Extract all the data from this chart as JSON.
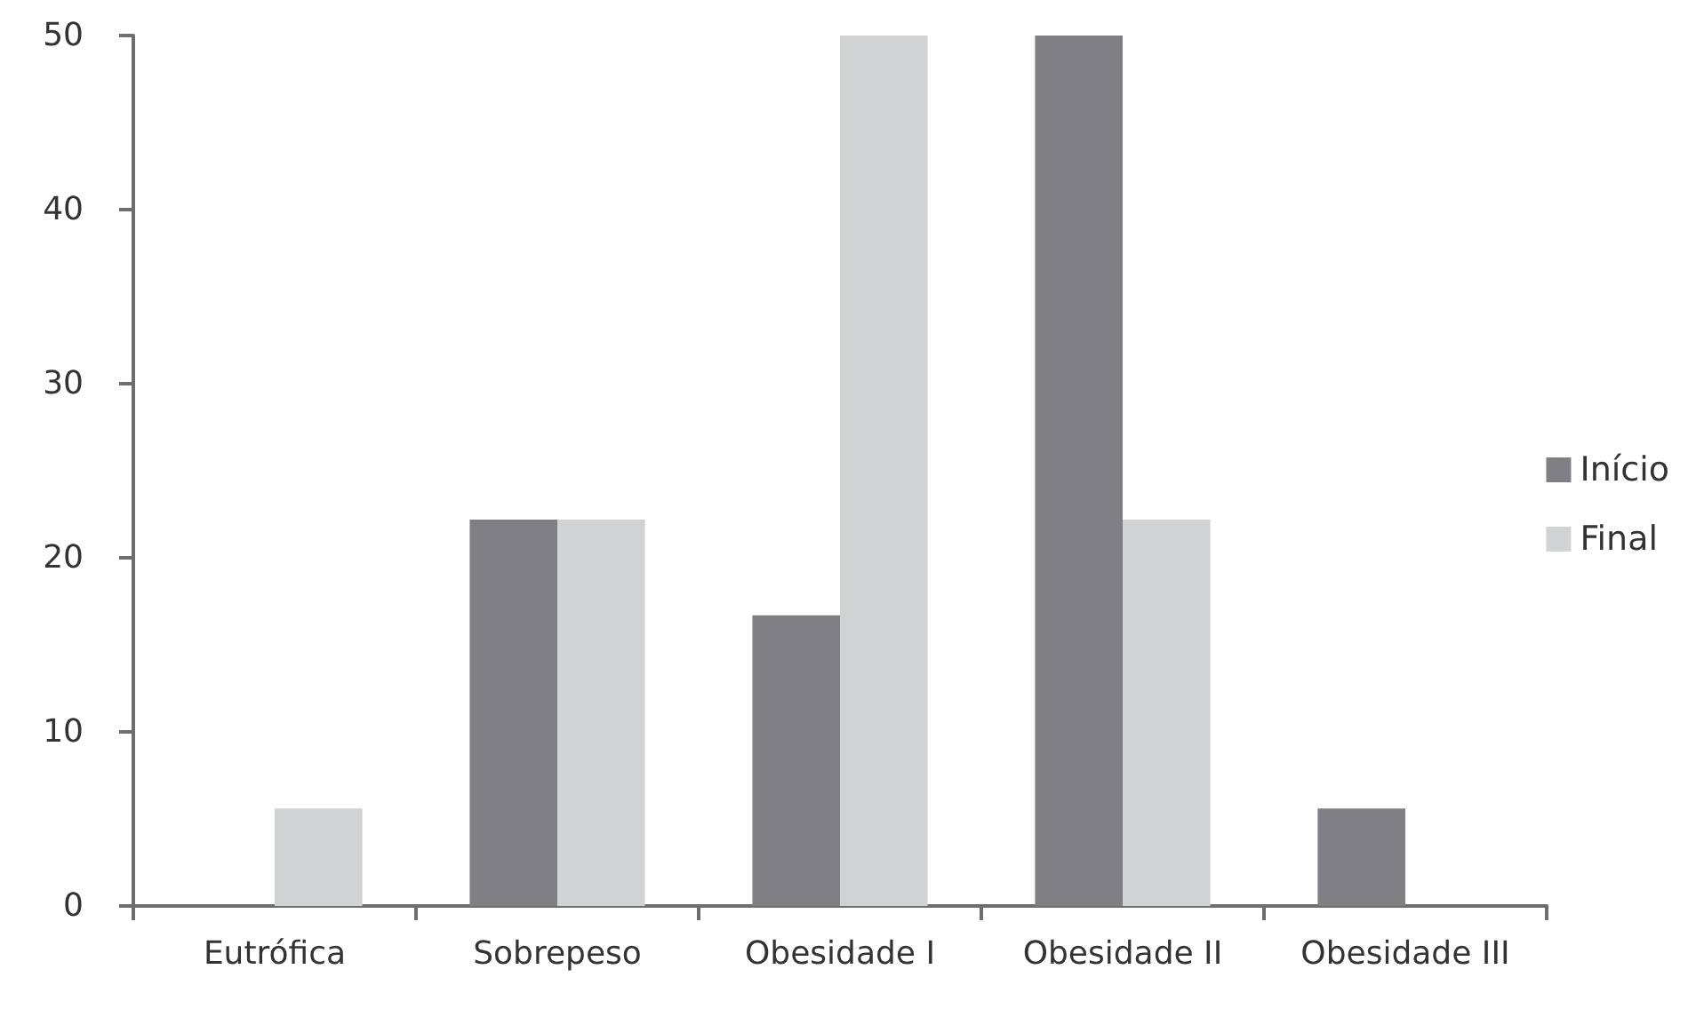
{
  "chart_data": {
    "type": "bar",
    "categories": [
      "Eutrófica",
      "Sobrepeso",
      "Obesidade I",
      "Obesidade II",
      "Obesidade III"
    ],
    "series": [
      {
        "name": "Início",
        "color": "#808084",
        "values": [
          0,
          22.2,
          16.7,
          50,
          5.6
        ]
      },
      {
        "name": "Final",
        "color": "#d1d2d4",
        "values": [
          5.6,
          22.2,
          50,
          22.2,
          0
        ]
      }
    ],
    "ylim": [
      0,
      50
    ],
    "yticks": [
      0,
      10,
      20,
      30,
      40,
      50
    ],
    "grid": false,
    "legend": "right"
  }
}
